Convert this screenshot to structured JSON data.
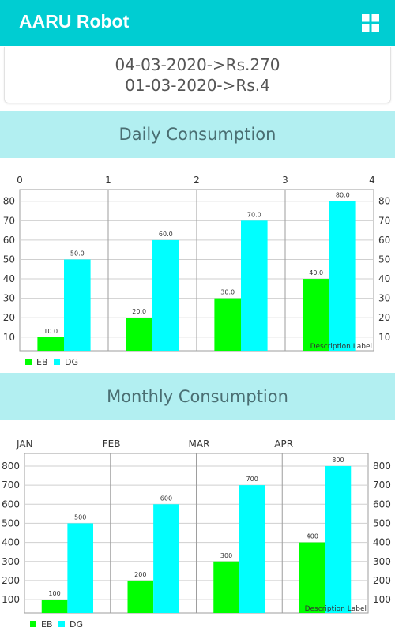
{
  "app": {
    "title": "AARU Robot",
    "menu_icon": "grid-icon"
  },
  "summary": {
    "lines": [
      "04-03-2020->Rs.270",
      "01-03-2020->Rs.4"
    ]
  },
  "daily": {
    "heading": "Daily Consumption",
    "chart_data": {
      "type": "bar",
      "title": "",
      "x_top_ticks": [
        "0",
        "1",
        "2",
        "3",
        "4"
      ],
      "categories": [
        "0",
        "1",
        "2",
        "3"
      ],
      "series": [
        {
          "name": "EB",
          "color": "#00FF00",
          "values": [
            10.0,
            20.0,
            30.0,
            40.0
          ],
          "labels": [
            "10.0",
            "20.0",
            "30.0",
            "40.0"
          ]
        },
        {
          "name": "DG",
          "color": "#00FFFF",
          "values": [
            50.0,
            60.0,
            70.0,
            80.0
          ],
          "labels": [
            "50.0",
            "60.0",
            "70.0",
            "80.0"
          ]
        }
      ],
      "y_ticks": [
        "10",
        "20",
        "30",
        "40",
        "50",
        "60",
        "70",
        "80"
      ],
      "ylim": [
        3,
        86
      ],
      "grid": true,
      "legend": "bottom-left",
      "description": "Description Label"
    }
  },
  "monthly": {
    "heading": "Monthly Consumption",
    "chart_data": {
      "type": "bar",
      "title": "",
      "x_top_ticks": [
        "JAN",
        "FEB",
        "MAR",
        "APR"
      ],
      "categories": [
        "JAN",
        "FEB",
        "MAR",
        "APR"
      ],
      "series": [
        {
          "name": "EB",
          "color": "#00FF00",
          "values": [
            100,
            200,
            300,
            400
          ],
          "labels": [
            "100",
            "200",
            "300",
            "400"
          ]
        },
        {
          "name": "DG",
          "color": "#00FFFF",
          "values": [
            500,
            600,
            700,
            800
          ],
          "labels": [
            "500",
            "600",
            "700",
            "800"
          ]
        }
      ],
      "y_ticks": [
        "100",
        "200",
        "300",
        "400",
        "500",
        "600",
        "700",
        "800"
      ],
      "ylim": [
        30,
        866
      ],
      "grid": true,
      "legend": "bottom-left",
      "description": "Description Label"
    }
  }
}
